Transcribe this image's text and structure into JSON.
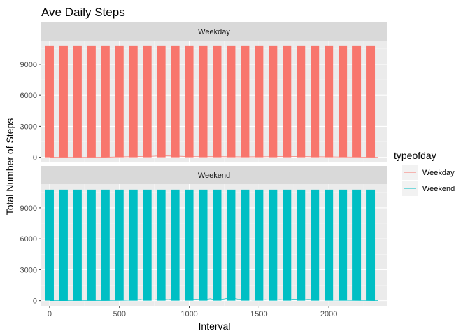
{
  "chart_data": {
    "type": "bar",
    "title": "Ave Daily Steps",
    "xlabel": "Interval",
    "ylabel": "Total Number of Steps",
    "xlim": [
      -60,
      2415
    ],
    "ylim": [
      -500,
      11300
    ],
    "xticks": [
      0,
      500,
      1000,
      1500,
      2000
    ],
    "yticks": [
      0,
      3000,
      6000,
      9000
    ],
    "grid": true,
    "legend": {
      "title": "typeofday",
      "placement": "right",
      "entries": [
        {
          "name": "Weekday",
          "color": "#F8766D"
        },
        {
          "name": "Weekend",
          "color": "#00BFC4"
        }
      ]
    },
    "bar_width": 60,
    "panels": [
      {
        "strip": "Weekday",
        "color": "#F8766D",
        "x": [
          0,
          100,
          200,
          300,
          400,
          500,
          600,
          700,
          800,
          900,
          1000,
          1100,
          1200,
          1300,
          1400,
          1500,
          1600,
          1700,
          1800,
          1900,
          2000,
          2100,
          2200,
          2300
        ],
        "values": [
          10766,
          10766,
          10766,
          10766,
          10766,
          10766,
          10766,
          10766,
          10766,
          10766,
          10766,
          10766,
          10766,
          10766,
          10766,
          10766,
          10766,
          10766,
          10766,
          10766,
          10766,
          10766,
          10766,
          10766
        ],
        "line": {
          "x": [
            0,
            100,
            200,
            300,
            400,
            500,
            600,
            700,
            800,
            900,
            1000,
            1100,
            1200,
            1300,
            1400,
            1500,
            1600,
            1700,
            1800,
            1900,
            2000,
            2100,
            2200,
            2300,
            2355
          ],
          "values": [
            10,
            5,
            5,
            5,
            10,
            40,
            60,
            80,
            140,
            120,
            70,
            60,
            60,
            50,
            40,
            50,
            60,
            90,
            70,
            50,
            40,
            30,
            20,
            10,
            5
          ]
        }
      },
      {
        "strip": "Weekend",
        "color": "#00BFC4",
        "x": [
          0,
          100,
          200,
          300,
          400,
          500,
          600,
          700,
          800,
          900,
          1000,
          1100,
          1200,
          1300,
          1400,
          1500,
          1600,
          1700,
          1800,
          1900,
          2000,
          2100,
          2200,
          2300
        ],
        "values": [
          10766,
          10766,
          10766,
          10766,
          10766,
          10766,
          10766,
          10766,
          10766,
          10766,
          10766,
          10766,
          10766,
          10766,
          10766,
          10766,
          10766,
          10766,
          10766,
          10766,
          10766,
          10766,
          10766,
          10766
        ],
        "line": {
          "x": [
            0,
            100,
            200,
            300,
            400,
            500,
            550,
            600,
            650,
            700,
            750,
            800,
            850,
            900,
            950,
            1000,
            1050,
            1100,
            1150,
            1200,
            1250,
            1300,
            1350,
            1400,
            1450,
            1500,
            1550,
            1600,
            1650,
            1700,
            1750,
            1800,
            1850,
            1900,
            1950,
            2000,
            2100,
            2200,
            2300,
            2355
          ],
          "values": [
            0,
            0,
            5,
            10,
            10,
            20,
            40,
            60,
            120,
            30,
            90,
            150,
            100,
            170,
            60,
            110,
            150,
            80,
            190,
            60,
            170,
            300,
            150,
            110,
            60,
            50,
            100,
            40,
            110,
            50,
            160,
            80,
            130,
            100,
            70,
            60,
            40,
            20,
            5,
            0
          ]
        }
      }
    ]
  }
}
